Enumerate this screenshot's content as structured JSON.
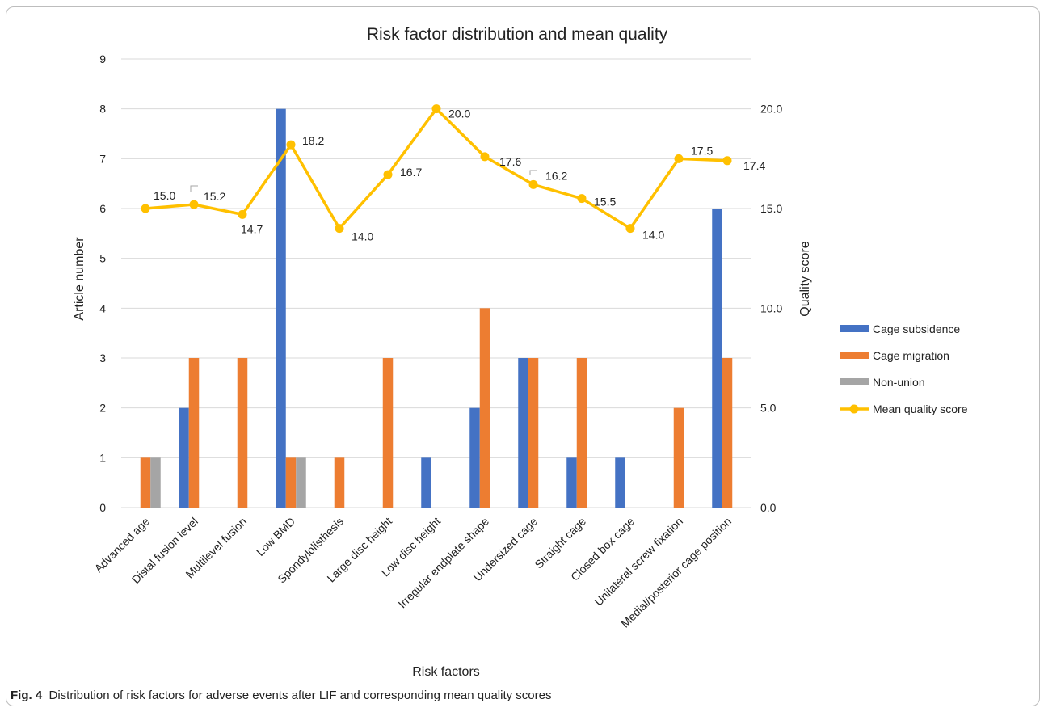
{
  "chart_data": {
    "type": "bar",
    "title": "Risk factor distribution and mean quality",
    "xlabel": "Risk factors",
    "ylabel": "Article number",
    "y2label": "Quality score",
    "ylim": [
      0,
      9
    ],
    "y2lim": [
      0,
      22.5
    ],
    "yticks": [
      "0",
      "1",
      "2",
      "3",
      "4",
      "5",
      "6",
      "7",
      "8",
      "9"
    ],
    "y2ticks": [
      "0.0",
      "5.0",
      "10.0",
      "15.0",
      "20.0"
    ],
    "grid": true,
    "legend_position": "right",
    "categories": [
      "Advanced age",
      "Distal fusion level",
      "Multilevel fusion",
      "Low BMD",
      "Spondylolisthesis",
      "Large disc height",
      "Low disc height",
      "Irregular endplate shape",
      "Undersized cage",
      "Straight cage",
      "Closed box cage",
      "Unilateral screw fixation",
      "Medial/posterior cage position"
    ],
    "series": [
      {
        "name": "Cage subsidence",
        "kind": "bar",
        "color": "#4472c4",
        "values": [
          0,
          2,
          0,
          8,
          0,
          0,
          1,
          2,
          3,
          1,
          1,
          0,
          6
        ]
      },
      {
        "name": "Cage migration",
        "kind": "bar",
        "color": "#ed7d31",
        "values": [
          1,
          3,
          3,
          1,
          1,
          3,
          0,
          4,
          3,
          3,
          0,
          2,
          3
        ]
      },
      {
        "name": "Non-union",
        "kind": "bar",
        "color": "#a5a5a5",
        "values": [
          1,
          0,
          0,
          1,
          0,
          0,
          0,
          0,
          0,
          0,
          0,
          0,
          0
        ]
      },
      {
        "name": "Mean quality score",
        "kind": "line",
        "axis": "right",
        "color": "#ffc000",
        "values": [
          15.0,
          15.2,
          14.7,
          18.2,
          14.0,
          16.7,
          20.0,
          17.6,
          16.2,
          15.5,
          14.0,
          17.5,
          17.4
        ],
        "labels": [
          "15.0",
          "15.2",
          "14.7",
          "18.2",
          "14.0",
          "16.7",
          "20.0",
          "17.6",
          "16.2",
          "15.5",
          "14.0",
          "17.5",
          "17.4"
        ]
      }
    ]
  },
  "caption": {
    "label": "Fig. 4",
    "text": "Distribution of risk factors for adverse events after LIF and corresponding mean quality scores"
  }
}
